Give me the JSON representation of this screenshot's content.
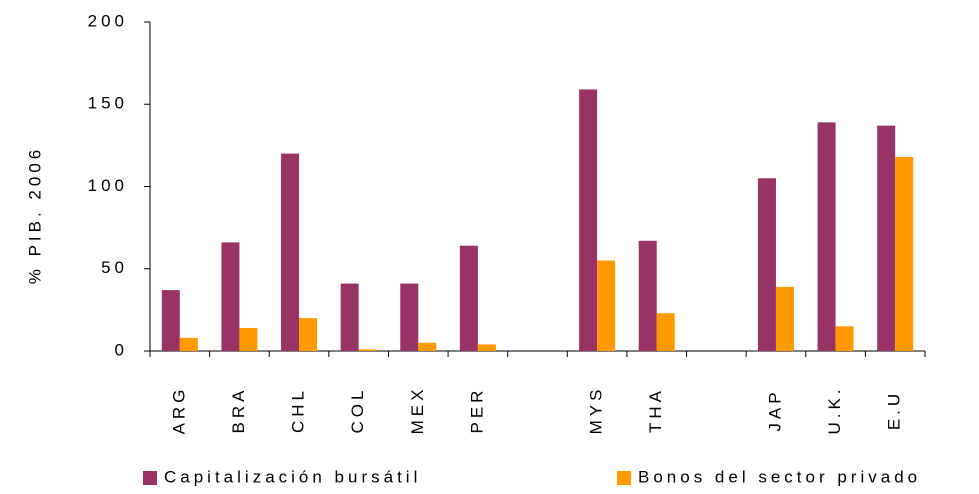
{
  "chart_data": {
    "type": "bar",
    "categories": [
      "ARG",
      "BRA",
      "CHL",
      "COL",
      "MEX",
      "PER",
      null,
      "MYS",
      "THA",
      null,
      "JAP",
      "U.K.",
      "E.U"
    ],
    "series": [
      {
        "name": "Capitalización bursátil",
        "color": "#993366",
        "values": [
          37,
          66,
          120,
          41,
          41,
          64,
          null,
          159,
          67,
          null,
          105,
          139,
          137
        ]
      },
      {
        "name": "Bonos del sector privado",
        "color": "#ff9900",
        "values": [
          8,
          14,
          20,
          1,
          5,
          4,
          null,
          55,
          23,
          null,
          39,
          15,
          118
        ]
      }
    ],
    "y_label": "% PIB. 2006",
    "ylim": [
      0,
      200
    ],
    "yticks": [
      0,
      50,
      100,
      150,
      200
    ],
    "grid": false
  }
}
